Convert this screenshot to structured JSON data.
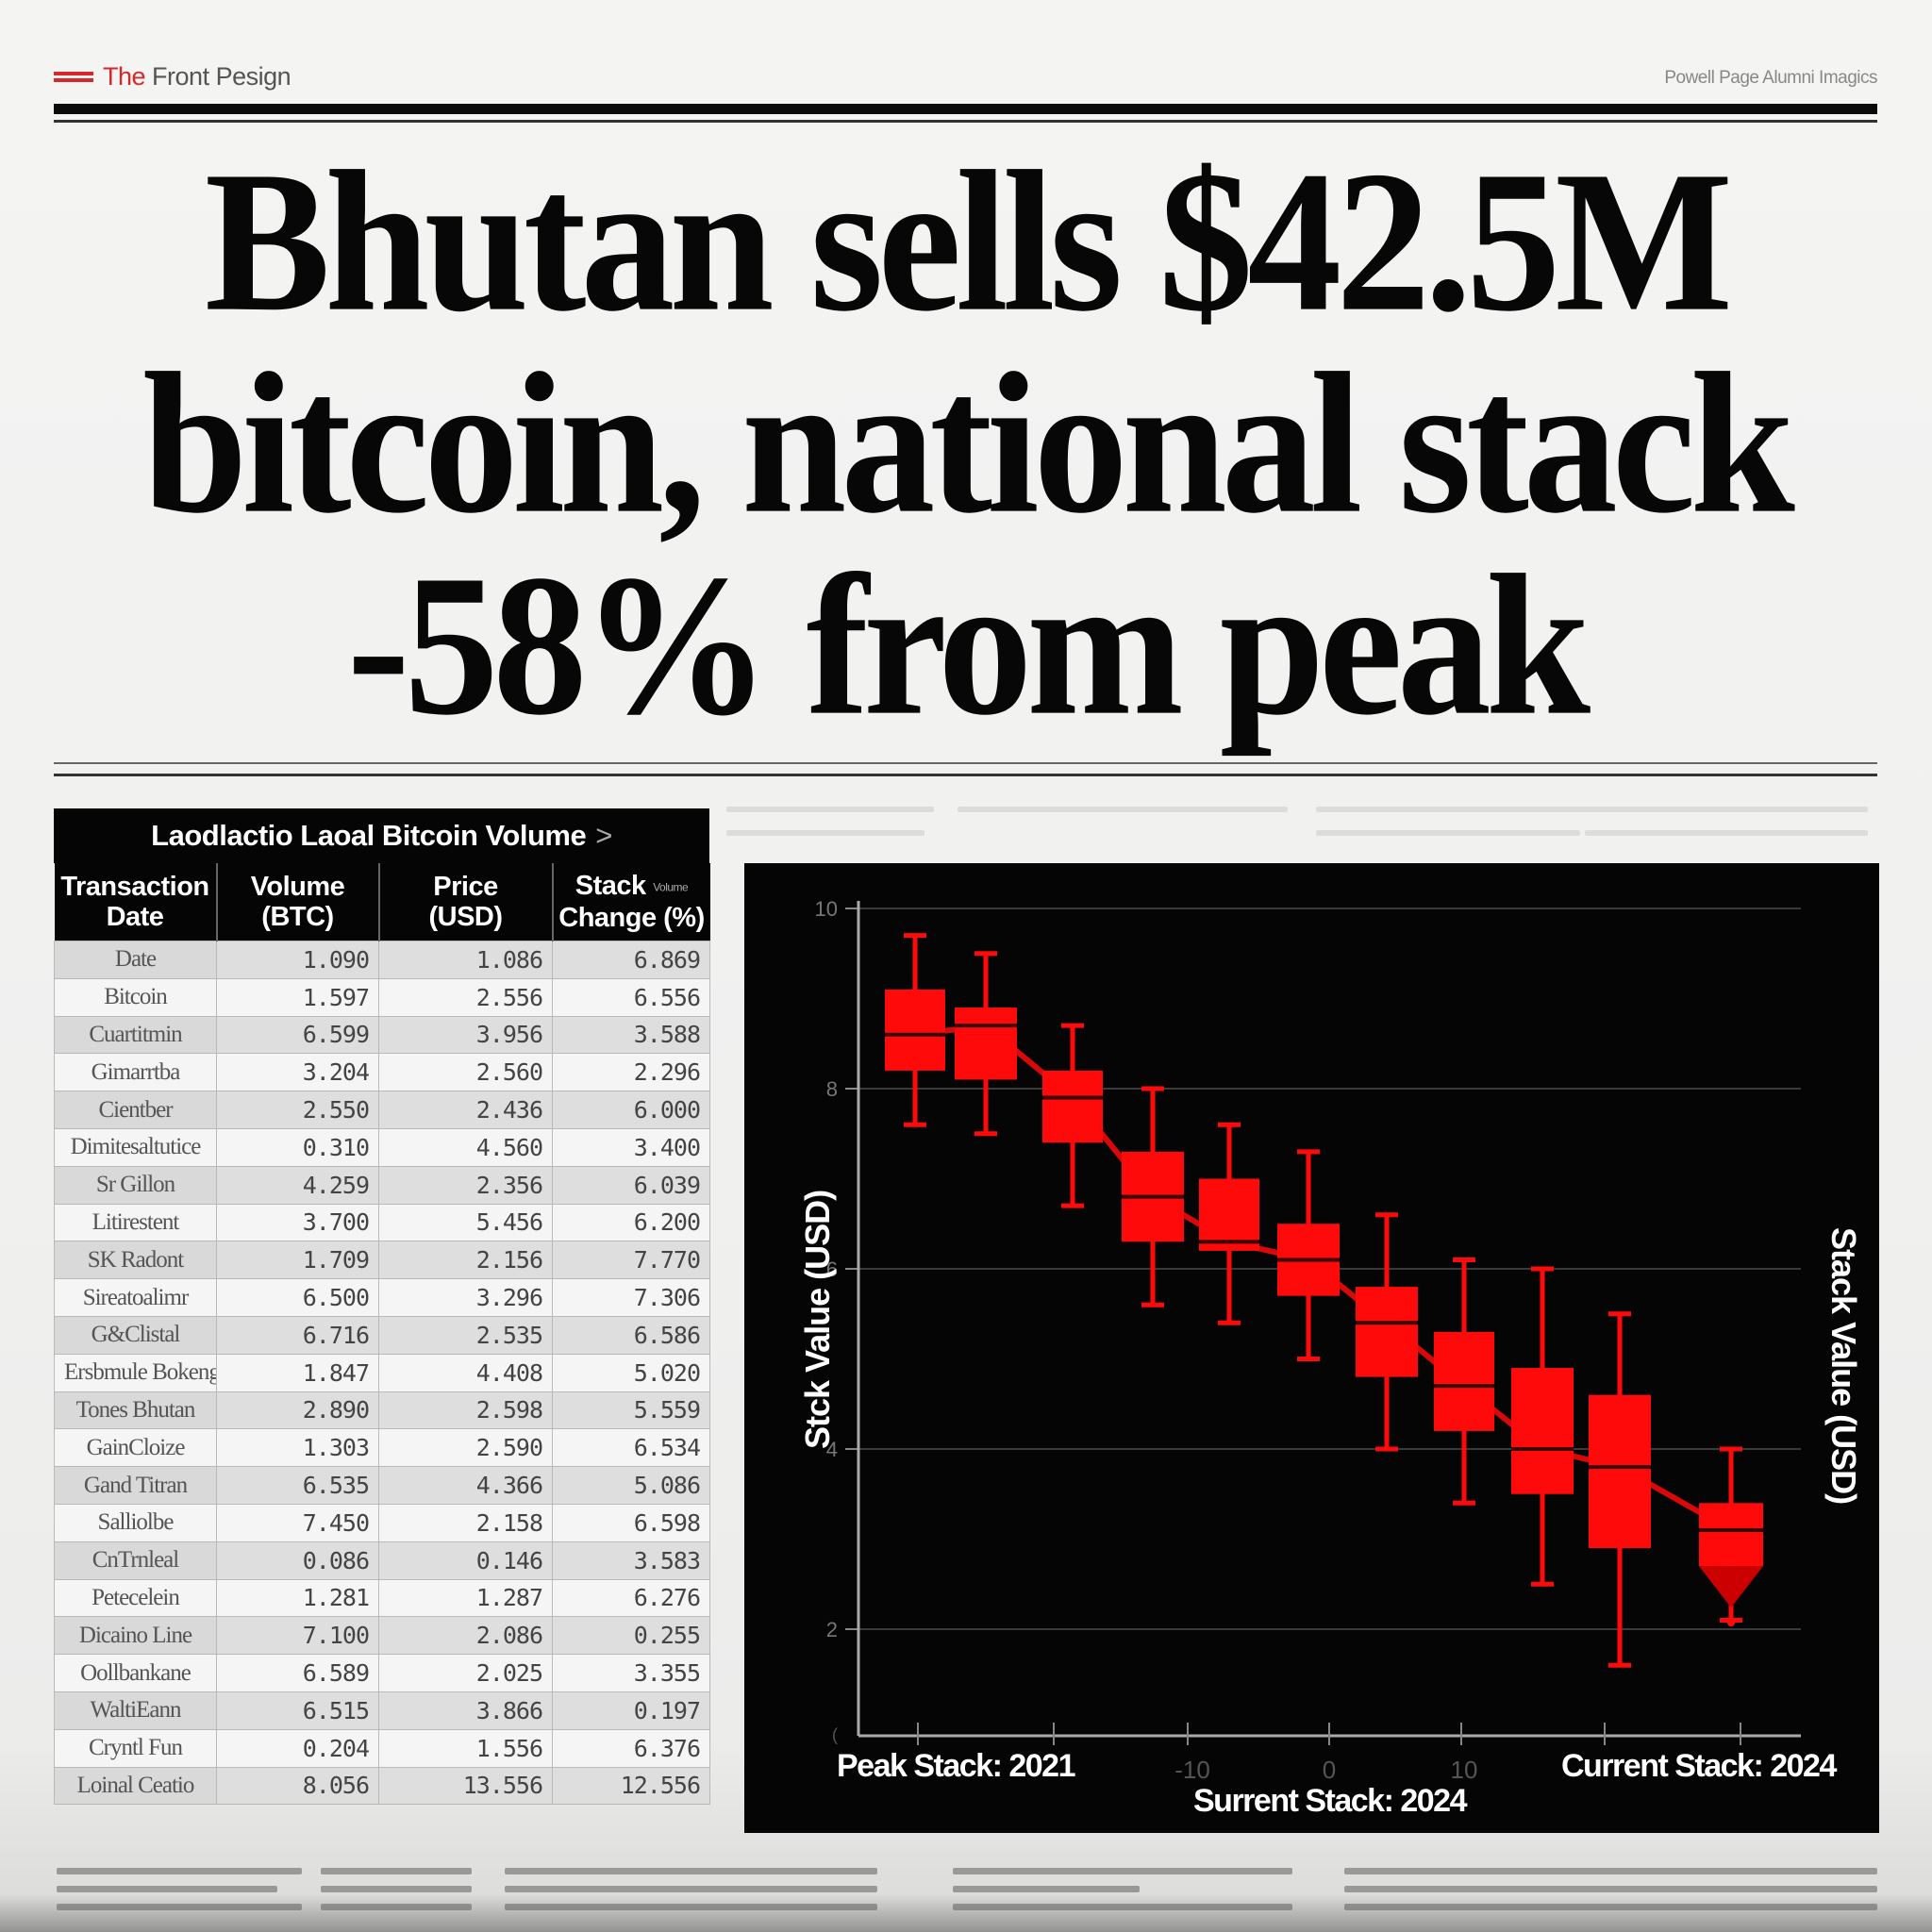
{
  "masthead": {
    "logo_icon": "red-stripes-logo",
    "title_prefix": "The",
    "title_rest": "Front Pesign",
    "right_text": "Powell Page Alumni Imagics"
  },
  "headline": {
    "lines": [
      "Bhutan sells $42.5M",
      "bitcoin, national stack",
      "-58% from peak"
    ]
  },
  "table": {
    "caption": "Laodlactio Laoal Bitcoin Volume",
    "caption_chevron": ">",
    "headers": [
      {
        "line1": "Transaction",
        "line2": "Date"
      },
      {
        "line1": "Volume",
        "line2": "(BTC)"
      },
      {
        "line1": "Price",
        "line2": "(USD)"
      },
      {
        "line1": "Stack",
        "line1_small": "Volume",
        "line2": "Change (%)"
      }
    ],
    "rows": [
      {
        "label": "Date",
        "volume": "1.090",
        "price": "1.086",
        "change": "6.869"
      },
      {
        "label": "Bitcoin",
        "volume": "1.597",
        "price": "2.556",
        "change": "6.556"
      },
      {
        "label": "Cuartitmin",
        "volume": "6.599",
        "price": "3.956",
        "change": "3.588"
      },
      {
        "label": "Gimarrtba",
        "volume": "3.204",
        "price": "2.560",
        "change": "2.296"
      },
      {
        "label": "Cientber",
        "volume": "2.550",
        "price": "2.436",
        "change": "6.000"
      },
      {
        "label": "Dimitesaltutice",
        "volume": "0.310",
        "price": "4.560",
        "change": "3.400"
      },
      {
        "label": "Sr Gillon",
        "volume": "4.259",
        "price": "2.356",
        "change": "6.039"
      },
      {
        "label": "Litirestent",
        "volume": "3.700",
        "price": "5.456",
        "change": "6.200"
      },
      {
        "label": "SK Radont",
        "volume": "1.709",
        "price": "2.156",
        "change": "7.770"
      },
      {
        "label": "Sireatoalimr",
        "volume": "6.500",
        "price": "3.296",
        "change": "7.306"
      },
      {
        "label": "G&Clistal",
        "volume": "6.716",
        "price": "2.535",
        "change": "6.586"
      },
      {
        "label": "Ersbmule Bokeng",
        "volume": "1.847",
        "price": "4.408",
        "change": "5.020"
      },
      {
        "label": "Tones Bhutan",
        "volume": "2.890",
        "price": "2.598",
        "change": "5.559"
      },
      {
        "label": "GainCloize",
        "volume": "1.303",
        "price": "2.590",
        "change": "6.534"
      },
      {
        "label": "Gand Titran",
        "volume": "6.535",
        "price": "4.366",
        "change": "5.086"
      },
      {
        "label": "Salliolbe",
        "volume": "7.450",
        "price": "2.158",
        "change": "6.598"
      },
      {
        "label": "CnTrnleal",
        "volume": "0.086",
        "price": "0.146",
        "change": "3.583"
      },
      {
        "label": "Petecelein",
        "volume": "1.281",
        "price": "1.287",
        "change": "6.276"
      },
      {
        "label": "Dicaino Line",
        "volume": "7.100",
        "price": "2.086",
        "change": "0.255"
      },
      {
        "label": "Oollbankane",
        "volume": "6.589",
        "price": "2.025",
        "change": "3.355"
      },
      {
        "label": "WaltiEann",
        "volume": "6.515",
        "price": "3.866",
        "change": "0.197"
      },
      {
        "label": "Cryntl Fun",
        "volume": "0.204",
        "price": "1.556",
        "change": "6.376"
      },
      {
        "label": "Loinal Ceatio",
        "volume": "8.056",
        "price": "13.556",
        "change": "12.556"
      }
    ]
  },
  "chart": {
    "ylabel_left": "Stck Value (USD)",
    "ylabel_right": "Stack Value (USD)",
    "xlabel_left": "Peak Stack: 2021",
    "xlabel_center": "Surrent Stack: 2024",
    "xlabel_right": "Current Stack: 2024",
    "x_ticks": [
      "-10",
      "0",
      "10"
    ],
    "y_ticks": [
      "10",
      "8",
      "6",
      "4",
      "2"
    ],
    "box_color": "#ff0a0a",
    "background": "#050505"
  },
  "chart_data": {
    "type": "box",
    "title": "",
    "xlabel": "Peak Stack: 2021 → Current Stack: 2024",
    "ylabel": "Stack Value (USD)",
    "ylim": [
      0.8,
      10.2
    ],
    "x_tick_labels": [
      "-10",
      "0",
      "10"
    ],
    "y_tick_labels": [
      "10",
      "8",
      "6",
      "4",
      "2"
    ],
    "grid": true,
    "legend": "none",
    "categories": [
      "1",
      "2",
      "3",
      "4",
      "5",
      "6",
      "7",
      "8",
      "9",
      "10",
      "11"
    ],
    "series": [
      {
        "name": "Stack value",
        "boxes": [
          {
            "whisker_high": 9.7,
            "q3": 9.1,
            "median": 8.6,
            "q1": 8.2,
            "whisker_low": 7.6
          },
          {
            "whisker_high": 9.5,
            "q3": 8.9,
            "median": 8.7,
            "q1": 8.1,
            "whisker_low": 7.5
          },
          {
            "whisker_high": 8.7,
            "q3": 8.2,
            "median": 7.9,
            "q1": 7.4,
            "whisker_low": 6.7
          },
          {
            "whisker_high": 8.0,
            "q3": 7.3,
            "median": 6.8,
            "q1": 6.3,
            "whisker_low": 5.6
          },
          {
            "whisker_high": 7.6,
            "q3": 7.0,
            "median": 6.3,
            "q1": 6.2,
            "whisker_low": 5.4
          },
          {
            "whisker_high": 7.3,
            "q3": 6.5,
            "median": 6.1,
            "q1": 5.7,
            "whisker_low": 5.0
          },
          {
            "whisker_high": 6.6,
            "q3": 5.8,
            "median": 5.4,
            "q1": 4.8,
            "whisker_low": 4.0
          },
          {
            "whisker_high": 6.1,
            "q3": 5.3,
            "median": 4.7,
            "q1": 4.2,
            "whisker_low": 3.4
          },
          {
            "whisker_high": 6.0,
            "q3": 4.9,
            "median": 4.0,
            "q1": 3.5,
            "whisker_low": 2.5
          },
          {
            "whisker_high": 5.5,
            "q3": 4.6,
            "median": 3.8,
            "q1": 2.9,
            "whisker_low": 1.6
          },
          {
            "whisker_high": 4.0,
            "q3": 3.4,
            "median": 3.1,
            "q1": 2.7,
            "whisker_low": 2.1
          }
        ]
      },
      {
        "name": "Median trend line",
        "values": [
          8.6,
          8.7,
          7.9,
          6.8,
          6.3,
          6.1,
          5.4,
          4.7,
          4.0,
          3.8,
          3.1
        ]
      }
    ],
    "annotations": [
      "Peak Stack: 2021",
      "Surrent Stack: 2024",
      "Current Stack: 2024",
      "down-arrow marker on final box"
    ]
  },
  "footer": {
    "columns": 4
  }
}
